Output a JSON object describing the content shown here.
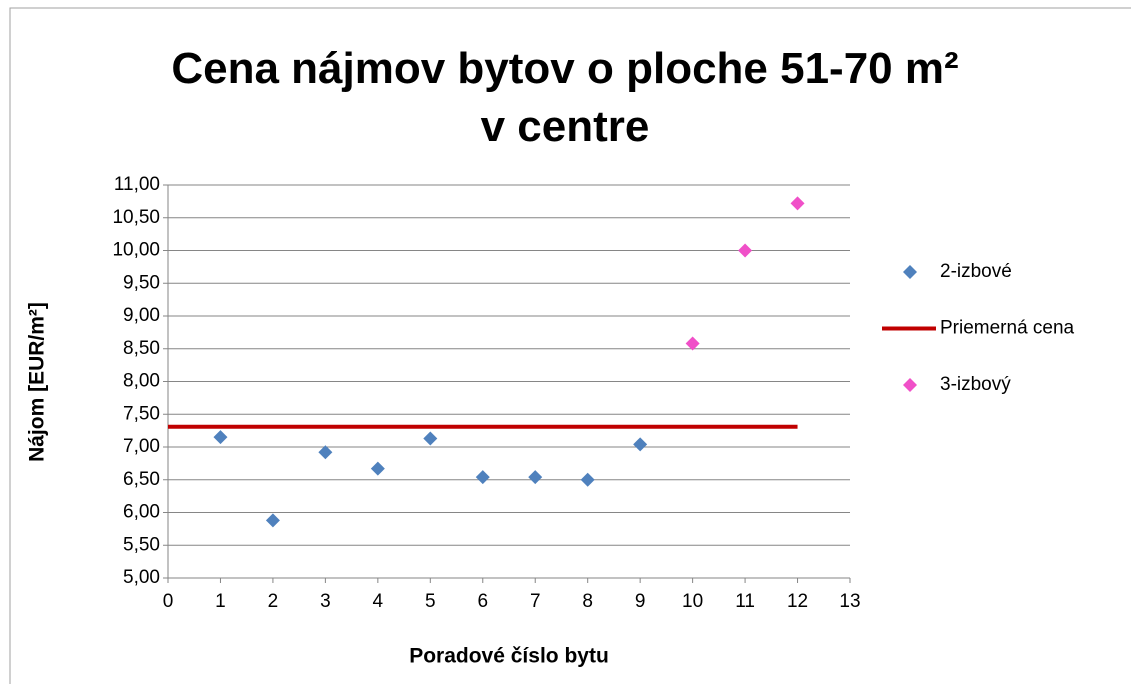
{
  "chart_data": {
    "type": "scatter",
    "title": "Cena nájmov bytov o ploche 51-70 m² v centre",
    "xlabel": "Poradové číslo bytu",
    "ylabel": "Nájom [EUR/m²]",
    "xlim": [
      0,
      13
    ],
    "xticks": [
      0,
      1,
      2,
      3,
      4,
      5,
      6,
      7,
      8,
      9,
      10,
      11,
      12,
      13
    ],
    "ylim": [
      5,
      11
    ],
    "yticks": [
      {
        "value": 5,
        "label": "5,00"
      },
      {
        "value": 5.5,
        "label": "5,50"
      },
      {
        "value": 6,
        "label": "6,00"
      },
      {
        "value": 6.5,
        "label": "6,50"
      },
      {
        "value": 7,
        "label": "7,00"
      },
      {
        "value": 7.5,
        "label": "7,50"
      },
      {
        "value": 8,
        "label": "8,00"
      },
      {
        "value": 8.5,
        "label": "8,50"
      },
      {
        "value": 9,
        "label": "9,00"
      },
      {
        "value": 9.5,
        "label": "9,50"
      },
      {
        "value": 10,
        "label": "10,00"
      },
      {
        "value": 10.5,
        "label": "10,50"
      },
      {
        "value": 11,
        "label": "11,00"
      }
    ],
    "grid": true,
    "legend": "right",
    "series": [
      {
        "name": "2-izbové",
        "color": "#4f81bd",
        "mode": "markers",
        "x": [
          1,
          2,
          3,
          4,
          5,
          6,
          7,
          8,
          9
        ],
        "values": [
          7.15,
          5.88,
          6.92,
          6.67,
          7.13,
          6.54,
          6.54,
          6.5,
          7.04
        ]
      },
      {
        "name": "Priemerná cena",
        "color": "#c00000",
        "mode": "line",
        "x": [
          0,
          12
        ],
        "values": [
          7.31,
          7.31
        ]
      },
      {
        "name": "3-izbový",
        "color": "#f050c8",
        "mode": "markers",
        "x": [
          10,
          11,
          12
        ],
        "values": [
          8.58,
          10.0,
          10.72
        ]
      }
    ]
  }
}
